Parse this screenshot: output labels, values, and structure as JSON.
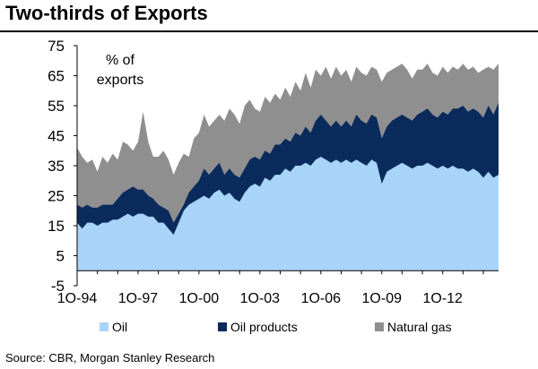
{
  "header": {
    "title": "Two-thirds of Exports"
  },
  "source": "Source: CBR, Morgan Stanley Research",
  "colors": {
    "oil": "#a9d4fa",
    "oil_products": "#0a2b5c",
    "natural_gas": "#8f8f8f"
  },
  "chart_data": {
    "type": "area",
    "stacked": true,
    "title": "",
    "ylabel": "% of exports",
    "xlabel": "",
    "ylim": [
      -5,
      75
    ],
    "yticks": [
      -5,
      5,
      15,
      25,
      35,
      45,
      55,
      65,
      75
    ],
    "xtick_labels": [
      "1Q-94",
      "1Q-97",
      "1Q-00",
      "1Q-03",
      "1Q-06",
      "1Q-09",
      "1Q-12"
    ],
    "xtick_index": [
      0,
      12,
      24,
      36,
      48,
      60,
      72
    ],
    "legend": [
      "Oil",
      "Oil products",
      "Natural gas"
    ],
    "legend_position": "bottom",
    "grid": false,
    "x": [
      "1Q-94",
      "2Q-94",
      "3Q-94",
      "4Q-94",
      "1Q-95",
      "2Q-95",
      "3Q-95",
      "4Q-95",
      "1Q-96",
      "2Q-96",
      "3Q-96",
      "4Q-96",
      "1Q-97",
      "2Q-97",
      "3Q-97",
      "4Q-97",
      "1Q-98",
      "2Q-98",
      "3Q-98",
      "4Q-98",
      "1Q-99",
      "2Q-99",
      "3Q-99",
      "4Q-99",
      "1Q-00",
      "2Q-00",
      "3Q-00",
      "4Q-00",
      "1Q-01",
      "2Q-01",
      "3Q-01",
      "4Q-01",
      "1Q-02",
      "2Q-02",
      "3Q-02",
      "4Q-02",
      "1Q-03",
      "2Q-03",
      "3Q-03",
      "4Q-03",
      "1Q-04",
      "2Q-04",
      "3Q-04",
      "4Q-04",
      "1Q-05",
      "2Q-05",
      "3Q-05",
      "4Q-05",
      "1Q-06",
      "2Q-06",
      "3Q-06",
      "4Q-06",
      "1Q-07",
      "2Q-07",
      "3Q-07",
      "4Q-07",
      "1Q-08",
      "2Q-08",
      "3Q-08",
      "4Q-08",
      "1Q-09",
      "2Q-09",
      "3Q-09",
      "4Q-09",
      "1Q-10",
      "2Q-10",
      "3Q-10",
      "4Q-10",
      "1Q-11",
      "2Q-11",
      "3Q-11",
      "4Q-11",
      "1Q-12",
      "2Q-12",
      "3Q-12",
      "4Q-12",
      "1Q-13",
      "2Q-13",
      "3Q-13",
      "4Q-13",
      "1Q-14",
      "2Q-14",
      "3Q-14",
      "4Q-14"
    ],
    "series": [
      {
        "name": "Oil",
        "values": [
          16,
          14,
          16,
          16,
          15,
          16,
          16,
          17,
          17,
          18,
          19,
          18,
          19,
          19,
          18,
          18,
          16,
          16,
          14,
          12,
          16,
          20,
          22,
          23,
          24,
          25,
          24,
          26,
          27,
          25,
          26,
          24,
          23,
          26,
          28,
          29,
          28,
          31,
          30,
          32,
          32,
          34,
          33,
          35,
          35,
          36,
          35,
          37,
          38,
          37,
          36,
          37,
          36,
          37,
          36,
          37,
          36,
          35,
          37,
          36,
          29,
          33,
          34,
          35,
          36,
          35,
          34,
          35,
          35,
          36,
          35,
          34,
          35,
          34,
          35,
          34,
          34,
          33,
          34,
          33,
          31,
          33,
          31,
          32
        ]
      },
      {
        "name": "Oil products",
        "values": [
          22,
          21,
          22,
          21,
          21,
          22,
          22,
          22,
          24,
          26,
          27,
          28,
          27,
          27,
          25,
          24,
          22,
          21,
          20,
          16,
          19,
          22,
          26,
          28,
          30,
          34,
          32,
          34,
          36,
          32,
          34,
          32,
          31,
          34,
          37,
          38,
          37,
          40,
          39,
          42,
          42,
          44,
          43,
          46,
          45,
          48,
          46,
          50,
          52,
          50,
          48,
          50,
          48,
          50,
          48,
          52,
          50,
          49,
          52,
          51,
          44,
          48,
          50,
          51,
          52,
          51,
          50,
          52,
          53,
          54,
          52,
          51,
          53,
          52,
          54,
          54,
          55,
          53,
          54,
          53,
          51,
          55,
          52,
          56
        ]
      },
      {
        "name": "Natural gas",
        "values": [
          41,
          38,
          36,
          37,
          33,
          38,
          36,
          39,
          37,
          43,
          42,
          40,
          43,
          53,
          43,
          38,
          38,
          40,
          37,
          32,
          36,
          39,
          38,
          44,
          46,
          52,
          48,
          50,
          52,
          50,
          54,
          52,
          49,
          55,
          57,
          54,
          53,
          58,
          56,
          59,
          57,
          61,
          58,
          63,
          60,
          66,
          61,
          67,
          65,
          68,
          64,
          68,
          65,
          67,
          63,
          68,
          66,
          65,
          68,
          67,
          63,
          66,
          67,
          68,
          69,
          67,
          64,
          67,
          67,
          69,
          66,
          65,
          68,
          66,
          68,
          67,
          69,
          67,
          68,
          66,
          67,
          68,
          67,
          69
        ]
      }
    ]
  }
}
